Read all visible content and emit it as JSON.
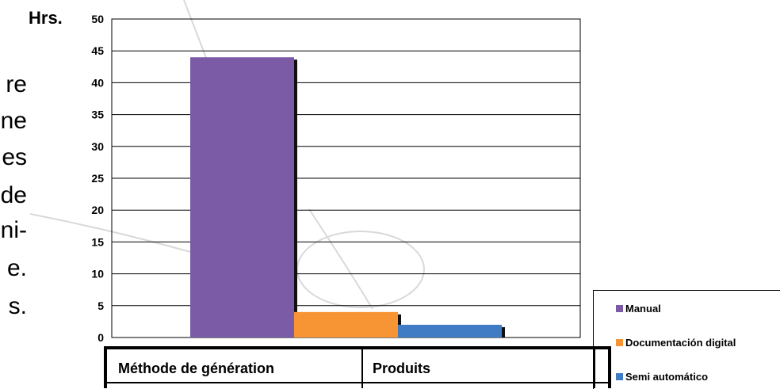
{
  "side_text": [
    "re",
    "ne",
    "es",
    "de",
    "ni-",
    "e.",
    "s."
  ],
  "chart_data": {
    "type": "bar",
    "ylabel": "Hrs.",
    "ylim": [
      0,
      50
    ],
    "yticks": [
      0,
      5,
      10,
      15,
      20,
      25,
      30,
      35,
      40,
      45,
      50
    ],
    "grid": true,
    "legend_position": "bottom-right",
    "series": [
      {
        "name": "Manual",
        "values": [
          44
        ],
        "color": "#7b5aa6"
      },
      {
        "name": "Documentación digital",
        "values": [
          4
        ],
        "color": "#f79433"
      },
      {
        "name": "Semi automático",
        "values": [
          2
        ],
        "color": "#3f7cc4"
      }
    ]
  },
  "table": {
    "headers": [
      "Méthode de génération",
      "Produits"
    ]
  }
}
